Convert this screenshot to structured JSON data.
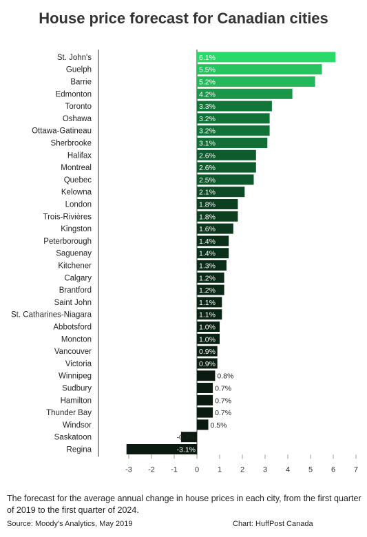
{
  "chart_data": {
    "type": "bar",
    "orientation": "horizontal",
    "title": "House price forecast for Canadian cities",
    "categories": [
      "St. John's",
      "Guelph",
      "Barrie",
      "Edmonton",
      "Toronto",
      "Oshawa",
      "Ottawa-Gatineau",
      "Sherbrooke",
      "Halifax",
      "Montreal",
      "Quebec",
      "Kelowna",
      "London",
      "Trois-Rivières",
      "Kingston",
      "Peterborough",
      "Saguenay",
      "Kitchener",
      "Calgary",
      "Brantford",
      "Saint John",
      "St. Catharines-Niagara",
      "Abbotsford",
      "Moncton",
      "Vancouver",
      "Victoria",
      "Winnipeg",
      "Sudbury",
      "Hamilton",
      "Thunder Bay",
      "Windsor",
      "Saskatoon",
      "Regina"
    ],
    "values": [
      6.1,
      5.5,
      5.2,
      4.2,
      3.3,
      3.2,
      3.2,
      3.1,
      2.6,
      2.6,
      2.5,
      2.1,
      1.8,
      1.8,
      1.6,
      1.4,
      1.4,
      1.3,
      1.2,
      1.2,
      1.1,
      1.1,
      1.0,
      1.0,
      0.9,
      0.9,
      0.8,
      0.7,
      0.7,
      0.7,
      0.5,
      -0.7,
      -3.1
    ],
    "value_labels": [
      "6.1%",
      "5.5%",
      "5.2%",
      "4.2%",
      "3.3%",
      "3.2%",
      "3.2%",
      "3.1%",
      "2.6%",
      "2.6%",
      "2.5%",
      "2.1%",
      "1.8%",
      "1.8%",
      "1.6%",
      "1.4%",
      "1.4%",
      "1.3%",
      "1.2%",
      "1.2%",
      "1.1%",
      "1.1%",
      "1.0%",
      "1.0%",
      "0.9%",
      "0.9%",
      "0.8%",
      "0.7%",
      "0.7%",
      "0.7%",
      "0.5%",
      "-0.7%",
      "-3.1%"
    ],
    "xticks": [
      -3,
      -2,
      -1,
      0,
      1,
      2,
      3,
      4,
      5,
      6,
      7
    ],
    "xlim": [
      -3.3,
      7.2
    ],
    "grid": false,
    "legend": "none",
    "color_scale": [
      "#2bd86a",
      "#0f6b34",
      "#0a1a10"
    ]
  },
  "caption": "The forecast for the average annual change in house prices in each city, from the first quarter of 2019 to the first quarter of 2024.",
  "source": "Source: Moody's Analytics, May 2019",
  "credit": "Chart: HuffPost Canada"
}
